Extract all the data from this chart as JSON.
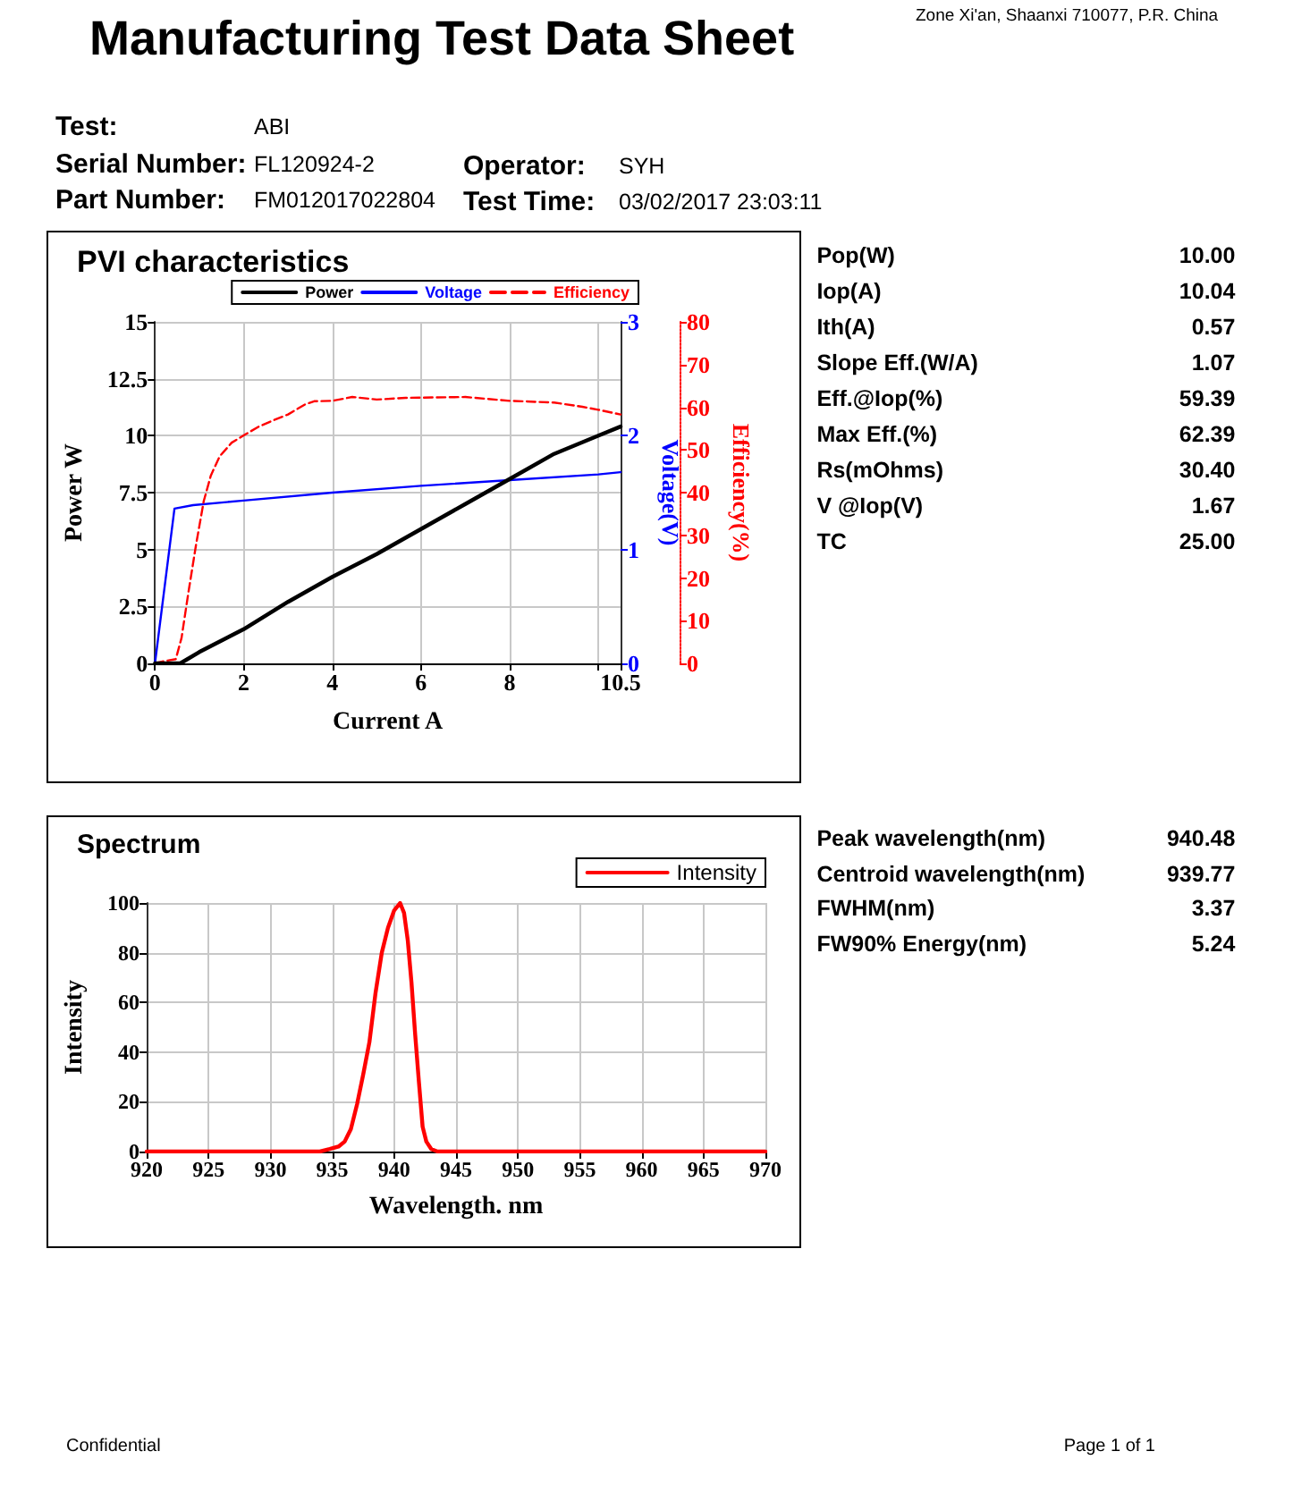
{
  "chart_data": [
    {
      "type": "other",
      "title": "Manufacturing Test Data Sheet",
      "annotations": [
        "Zone Xi'an, Shaanxi 710077, P.R. China",
        "Test:",
        "ABI",
        "Serial Number:",
        "FL120924-2",
        "Operator:",
        "SYH",
        "Part Number:",
        "FM012017022804",
        "Test Time:",
        "03/02/2017 23:03:11",
        "Confidential",
        "Page 1 of 1"
      ]
    },
    {
      "type": "line",
      "title": "PVI characteristics",
      "xlabel": "Current A",
      "ylabel": "Power W",
      "y2label": "Voltage(V)",
      "y3label": "Efficiency(%)",
      "xlim": [
        0,
        10.5
      ],
      "xticks": [
        0,
        2,
        4,
        6,
        8,
        {
          "value": 10,
          "label": null
        },
        10.5
      ],
      "ylim": [
        0,
        15
      ],
      "yticks": [
        0,
        2.5,
        5,
        7.5,
        10,
        12.5,
        15
      ],
      "y2lim": [
        0,
        3
      ],
      "y2ticks": [
        0,
        1,
        2,
        3
      ],
      "y3lim": [
        0,
        80
      ],
      "y3ticks": [
        0,
        10,
        20,
        30,
        40,
        50,
        60,
        70,
        80
      ],
      "grid": true,
      "legend": "top right",
      "series": [
        {
          "name": "Power",
          "color": "#000000",
          "x": [
            0,
            0.57,
            1,
            2,
            3,
            4,
            5,
            6,
            7,
            8,
            9,
            10,
            10.5
          ],
          "values": [
            0,
            0,
            0.5,
            1.5,
            2.7,
            3.8,
            4.8,
            5.9,
            7,
            8.1,
            9.2,
            10,
            10.4
          ]
        },
        {
          "name": "Voltage",
          "color": "#0000ff",
          "axis": "y2",
          "x": [
            0,
            0.44,
            0.86,
            2,
            4,
            6,
            8,
            10,
            10.5
          ],
          "values": [
            0,
            1.36,
            1.39,
            1.43,
            1.5,
            1.56,
            1.61,
            1.66,
            1.68
          ]
        },
        {
          "name": "Efficiency",
          "color": "#ff0000",
          "axis": "y3",
          "line_style": "dashed",
          "x": [
            0,
            0.2,
            0.47,
            0.6,
            0.76,
            0.93,
            1.1,
            1.26,
            1.46,
            1.73,
            2,
            2.33,
            2.66,
            3,
            3.39,
            3.59,
            4,
            4.45,
            5,
            5.65,
            7,
            8,
            9,
            9.64,
            10,
            10.5
          ],
          "values": [
            0,
            0.5,
            1,
            6,
            17,
            28,
            38,
            44,
            48.5,
            51.7,
            53.4,
            55.4,
            56.9,
            58.3,
            60.7,
            61.4,
            61.5,
            62.4,
            61.8,
            62.2,
            62.4,
            61.5,
            61.1,
            60.1,
            59.4,
            58.3
          ]
        }
      ]
    },
    {
      "type": "other",
      "annotations": [
        "Pop(W)",
        "10.00",
        "Iop(A)",
        "10.04",
        "Ith(A)",
        "0.57",
        "Slope Eff.(W/A)",
        "1.07",
        "Eff.@Iop(%)",
        "59.39",
        "Max Eff.(%)",
        "62.39",
        "Rs(mOhms)",
        "30.40",
        "V @Iop(V)",
        "1.67",
        "TC",
        "25.00"
      ]
    },
    {
      "type": "line",
      "title": "Spectrum",
      "xlabel": "Wavelength. nm",
      "ylabel": "Intensity",
      "xlim": [
        920,
        970
      ],
      "xticks": [
        920,
        925,
        930,
        935,
        940,
        945,
        950,
        955,
        960,
        965,
        970
      ],
      "ylim": [
        0,
        100
      ],
      "yticks": [
        0,
        20,
        40,
        60,
        80,
        100
      ],
      "grid": true,
      "legend": "top right",
      "series": [
        {
          "name": "Intensity",
          "color": "#ff0000",
          "x": [
            920,
            925,
            930,
            934,
            934.8,
            935.5,
            936,
            936.5,
            937,
            937.5,
            938,
            938.5,
            939,
            939.5,
            940,
            940.48,
            940.8,
            941.1,
            941.4,
            941.7,
            942,
            942.3,
            942.6,
            943,
            943.5,
            944,
            950,
            955,
            960,
            965,
            970
          ],
          "values": [
            0,
            0,
            0,
            0,
            1,
            2,
            4,
            9,
            19,
            31,
            44,
            64,
            80,
            90,
            97,
            100,
            96,
            85,
            68,
            47,
            28,
            10,
            4,
            1,
            0,
            0,
            0,
            0,
            0,
            0,
            0
          ]
        }
      ]
    },
    {
      "type": "other",
      "annotations": [
        "Peak wavelength(nm)",
        "940.48",
        "Centroid wavelength(nm)",
        "939.77",
        "FWHM(nm)",
        "3.37",
        "FW90% Energy(nm)",
        "5.24"
      ]
    }
  ]
}
